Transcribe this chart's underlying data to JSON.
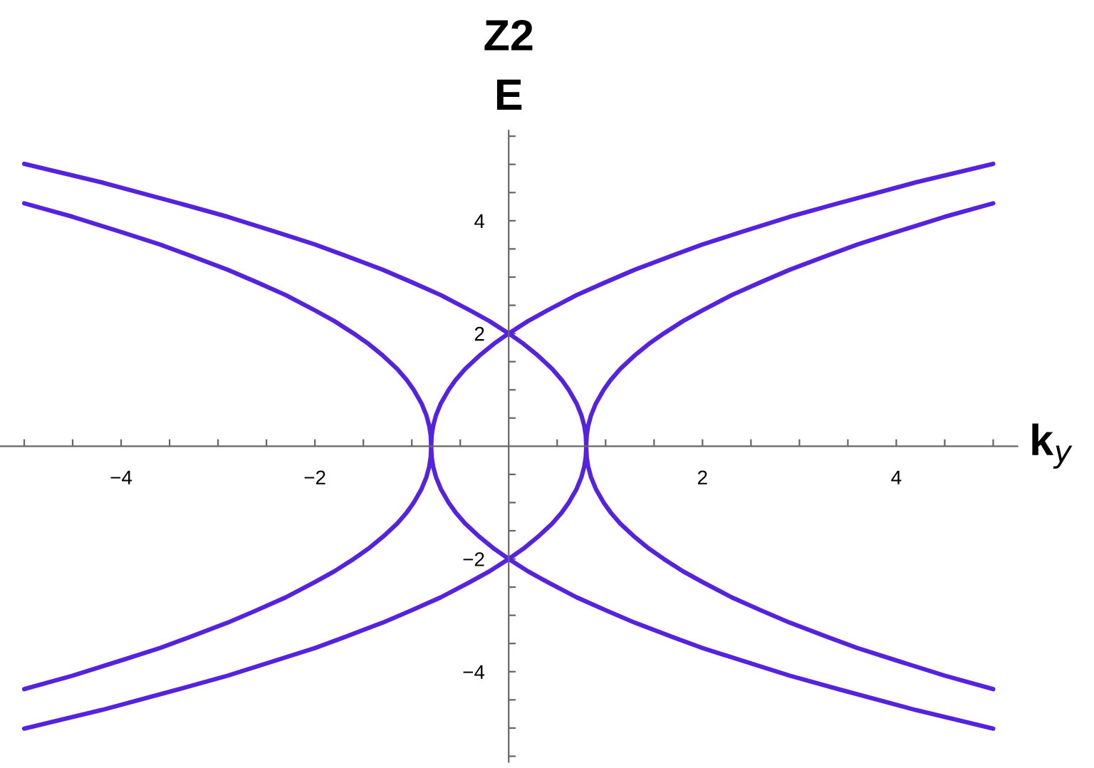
{
  "chart_data": {
    "type": "line",
    "title": "Z2",
    "ylabel": "E",
    "xlabel": "k$_{y}$",
    "xlim": [
      -5.25,
      5.25
    ],
    "ylim": [
      -5.6,
      5.6
    ],
    "xticks": [
      {
        "value": -5,
        "label": null
      },
      {
        "value": -4.5,
        "label": null
      },
      {
        "value": -4,
        "label": "−4"
      },
      {
        "value": -3.5,
        "label": null
      },
      {
        "value": -3,
        "label": null
      },
      {
        "value": -2.5,
        "label": null
      },
      {
        "value": -2,
        "label": "−2"
      },
      {
        "value": -1.5,
        "label": null
      },
      {
        "value": -1,
        "label": null
      },
      {
        "value": -0.5,
        "label": null
      },
      {
        "value": 0.5,
        "label": null
      },
      {
        "value": 1,
        "label": null
      },
      {
        "value": 1.5,
        "label": null
      },
      {
        "value": 2,
        "label": "2"
      },
      {
        "value": 2.5,
        "label": null
      },
      {
        "value": 3,
        "label": null
      },
      {
        "value": 3.5,
        "label": null
      },
      {
        "value": 4,
        "label": "4"
      },
      {
        "value": 4.5,
        "label": null
      },
      {
        "value": 5,
        "label": null
      }
    ],
    "yticks": [
      {
        "value": -5.5,
        "label": null
      },
      {
        "value": -5,
        "label": null
      },
      {
        "value": -4.5,
        "label": null
      },
      {
        "value": -4,
        "label": "−4"
      },
      {
        "value": -3.5,
        "label": null
      },
      {
        "value": -3,
        "label": null
      },
      {
        "value": -2.5,
        "label": null
      },
      {
        "value": -2,
        "label": "−2"
      },
      {
        "value": -1.5,
        "label": null
      },
      {
        "value": -1,
        "label": null
      },
      {
        "value": -0.5,
        "label": null
      },
      {
        "value": 0.5,
        "label": null
      },
      {
        "value": 1,
        "label": null
      },
      {
        "value": 1.5,
        "label": null
      },
      {
        "value": 2,
        "label": "2"
      },
      {
        "value": 2.5,
        "label": null
      },
      {
        "value": 3,
        "label": null
      },
      {
        "value": 3.5,
        "label": null
      },
      {
        "value": 4,
        "label": "4"
      },
      {
        "value": 4.5,
        "label": null
      },
      {
        "value": 5,
        "label": null
      },
      {
        "value": 5.5,
        "label": null
      }
    ],
    "grid": false,
    "legend": false,
    "marker": "none",
    "line_style": "solid",
    "series": [
      {
        "color": "#5522dd",
        "x": [
          -5.0,
          -4.5,
          -4.0,
          -3.6,
          -3.3,
          -2.9,
          -2.6,
          -2.3,
          -2.0,
          -1.8,
          -1.6,
          -1.45,
          -1.3,
          -1.15,
          -1.05,
          -0.98,
          -0.9,
          -0.85,
          -0.82,
          -0.805,
          -0.8,
          -0.795,
          -0.78,
          -0.75,
          -0.7,
          -0.62,
          -0.55,
          -0.45,
          -0.3,
          -0.15,
          0,
          0.2,
          0.4,
          0.7,
          1.0,
          1.3,
          1.7,
          2.0,
          2.4,
          2.9,
          3.4,
          4.2,
          5.0
        ],
        "values": [
          4.31,
          4.07,
          3.8,
          3.58,
          3.39,
          3.13,
          2.91,
          2.68,
          2.41,
          2.22,
          2.0,
          1.82,
          1.61,
          1.37,
          1.17,
          1.0,
          0.76,
          0.55,
          0.36,
          0.19,
          0,
          0.19,
          0.36,
          0.55,
          0.76,
          1.0,
          1.17,
          1.37,
          1.61,
          1.82,
          2.0,
          2.22,
          2.41,
          2.68,
          2.91,
          3.13,
          3.39,
          3.58,
          3.8,
          4.07,
          4.31,
          4.68,
          5.01
        ]
      },
      {
        "color": "#5522dd",
        "x": [
          5.0,
          4.5,
          4.0,
          3.6,
          3.3,
          2.9,
          2.6,
          2.3,
          2.0,
          1.8,
          1.6,
          1.45,
          1.3,
          1.15,
          1.05,
          0.98,
          0.9,
          0.85,
          0.82,
          0.805,
          0.8,
          0.795,
          0.78,
          0.75,
          0.7,
          0.62,
          0.55,
          0.45,
          0.3,
          0.15,
          0,
          -0.2,
          -0.4,
          -0.7,
          -1.0,
          -1.3,
          -1.7,
          -2.0,
          -2.4,
          -2.9,
          -3.4,
          -4.2,
          -5.0
        ],
        "values": [
          4.31,
          4.07,
          3.8,
          3.58,
          3.39,
          3.13,
          2.91,
          2.68,
          2.41,
          2.22,
          2.0,
          1.82,
          1.61,
          1.37,
          1.17,
          1.0,
          0.76,
          0.55,
          0.36,
          0.19,
          0,
          0.19,
          0.36,
          0.55,
          0.76,
          1.0,
          1.17,
          1.37,
          1.61,
          1.82,
          2.0,
          2.22,
          2.41,
          2.68,
          2.91,
          3.13,
          3.39,
          3.58,
          3.8,
          4.07,
          4.31,
          4.68,
          5.01
        ]
      },
      {
        "color": "#5522dd",
        "x": [
          -5.0,
          -4.5,
          -4.0,
          -3.6,
          -3.3,
          -2.9,
          -2.6,
          -2.3,
          -2.0,
          -1.8,
          -1.6,
          -1.45,
          -1.3,
          -1.15,
          -1.05,
          -0.98,
          -0.9,
          -0.85,
          -0.82,
          -0.805,
          -0.8,
          -0.795,
          -0.78,
          -0.75,
          -0.7,
          -0.62,
          -0.55,
          -0.45,
          -0.3,
          -0.15,
          0,
          0.2,
          0.4,
          0.7,
          1.0,
          1.3,
          1.7,
          2.0,
          2.4,
          2.9,
          3.4,
          4.2,
          5.0
        ],
        "values": [
          -4.31,
          -4.07,
          -3.8,
          -3.58,
          -3.39,
          -3.13,
          -2.91,
          -2.68,
          -2.41,
          -2.22,
          -2.0,
          -1.82,
          -1.61,
          -1.37,
          -1.17,
          -1.0,
          -0.76,
          -0.55,
          -0.36,
          -0.19,
          0,
          -0.19,
          -0.36,
          -0.55,
          -0.76,
          -1.0,
          -1.17,
          -1.37,
          -1.61,
          -1.82,
          -2.0,
          -2.22,
          -2.41,
          -2.68,
          -2.91,
          -3.13,
          -3.39,
          -3.58,
          -3.8,
          -4.07,
          -4.31,
          -4.68,
          -5.01
        ]
      },
      {
        "color": "#5522dd",
        "x": [
          5.0,
          4.5,
          4.0,
          3.6,
          3.3,
          2.9,
          2.6,
          2.3,
          2.0,
          1.8,
          1.6,
          1.45,
          1.3,
          1.15,
          1.05,
          0.98,
          0.9,
          0.85,
          0.82,
          0.805,
          0.8,
          0.795,
          0.78,
          0.75,
          0.7,
          0.62,
          0.55,
          0.45,
          0.3,
          0.15,
          0,
          -0.2,
          -0.4,
          -0.7,
          -1.0,
          -1.3,
          -1.7,
          -2.0,
          -2.4,
          -2.9,
          -3.4,
          -4.2,
          -5.0
        ],
        "values": [
          -4.31,
          -4.07,
          -3.8,
          -3.58,
          -3.39,
          -3.13,
          -2.91,
          -2.68,
          -2.41,
          -2.22,
          -2.0,
          -1.82,
          -1.61,
          -1.37,
          -1.17,
          -1.0,
          -0.76,
          -0.55,
          -0.36,
          -0.19,
          0,
          -0.19,
          -0.36,
          -0.55,
          -0.76,
          -1.0,
          -1.17,
          -1.37,
          -1.61,
          -1.82,
          -2.0,
          -2.22,
          -2.41,
          -2.68,
          -2.91,
          -3.13,
          -3.39,
          -3.58,
          -3.8,
          -4.07,
          -4.31,
          -4.68,
          -5.01
        ]
      }
    ]
  }
}
